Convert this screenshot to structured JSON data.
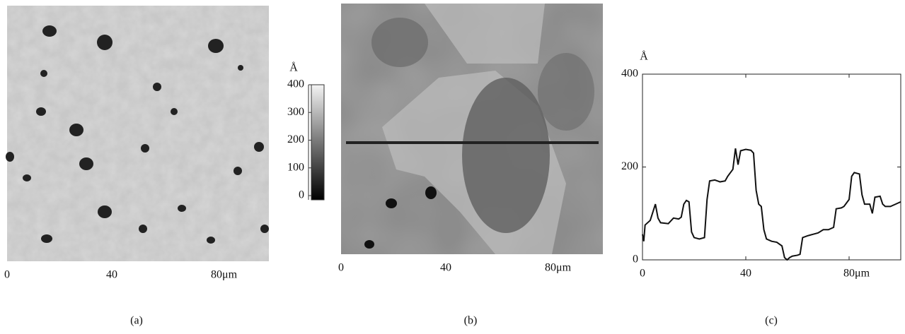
{
  "chart_data": [
    {
      "type": "image",
      "caption": "(a)",
      "xlim": [
        0,
        100
      ],
      "xticks": [
        0,
        40,
        {
          "value": 80,
          "label": "80μm"
        }
      ],
      "colorbar": {
        "label": "Å",
        "ylim": [
          0,
          400
        ],
        "yticks": [
          0,
          100,
          200,
          300,
          400
        ]
      }
    },
    {
      "type": "image",
      "caption": "(b)",
      "xlim": [
        0,
        100
      ],
      "xticks": [
        0,
        40,
        {
          "value": 80,
          "label": "80μm"
        }
      ]
    },
    {
      "type": "line",
      "caption": "(c)",
      "ylabel": "Å",
      "xlim": [
        0,
        100
      ],
      "ylim": [
        0,
        400
      ],
      "xticks": [
        0,
        40,
        {
          "value": 80,
          "label": "80μm"
        }
      ],
      "yticks": [
        0,
        200,
        400
      ],
      "x": [
        0,
        0.5,
        1,
        3,
        5,
        6,
        7,
        10,
        12,
        14,
        15,
        16,
        17,
        18,
        19,
        20,
        22,
        24,
        25,
        26,
        28,
        30,
        32,
        33,
        35,
        36,
        37,
        38,
        40,
        42,
        43,
        44,
        45,
        46,
        47,
        48,
        50,
        52,
        54,
        55,
        56,
        57,
        58,
        60,
        61,
        62,
        64,
        66,
        68,
        70,
        72,
        74,
        75,
        77,
        78,
        80,
        81,
        82,
        84,
        85,
        86,
        88,
        89,
        90,
        92,
        93,
        94,
        96,
        98,
        100
      ],
      "series": [
        {
          "color": "#111111",
          "values": [
            55,
            40,
            75,
            85,
            120,
            90,
            80,
            78,
            90,
            88,
            92,
            120,
            128,
            125,
            60,
            48,
            45,
            48,
            130,
            170,
            172,
            168,
            170,
            180,
            195,
            240,
            205,
            235,
            238,
            236,
            230,
            150,
            120,
            115,
            65,
            45,
            40,
            38,
            30,
            5,
            0,
            5,
            8,
            10,
            12,
            48,
            52,
            55,
            58,
            65,
            65,
            70,
            110,
            112,
            115,
            130,
            180,
            188,
            185,
            140,
            120,
            120,
            100,
            135,
            137,
            120,
            115,
            115,
            120,
            125
          ]
        }
      ]
    }
  ]
}
